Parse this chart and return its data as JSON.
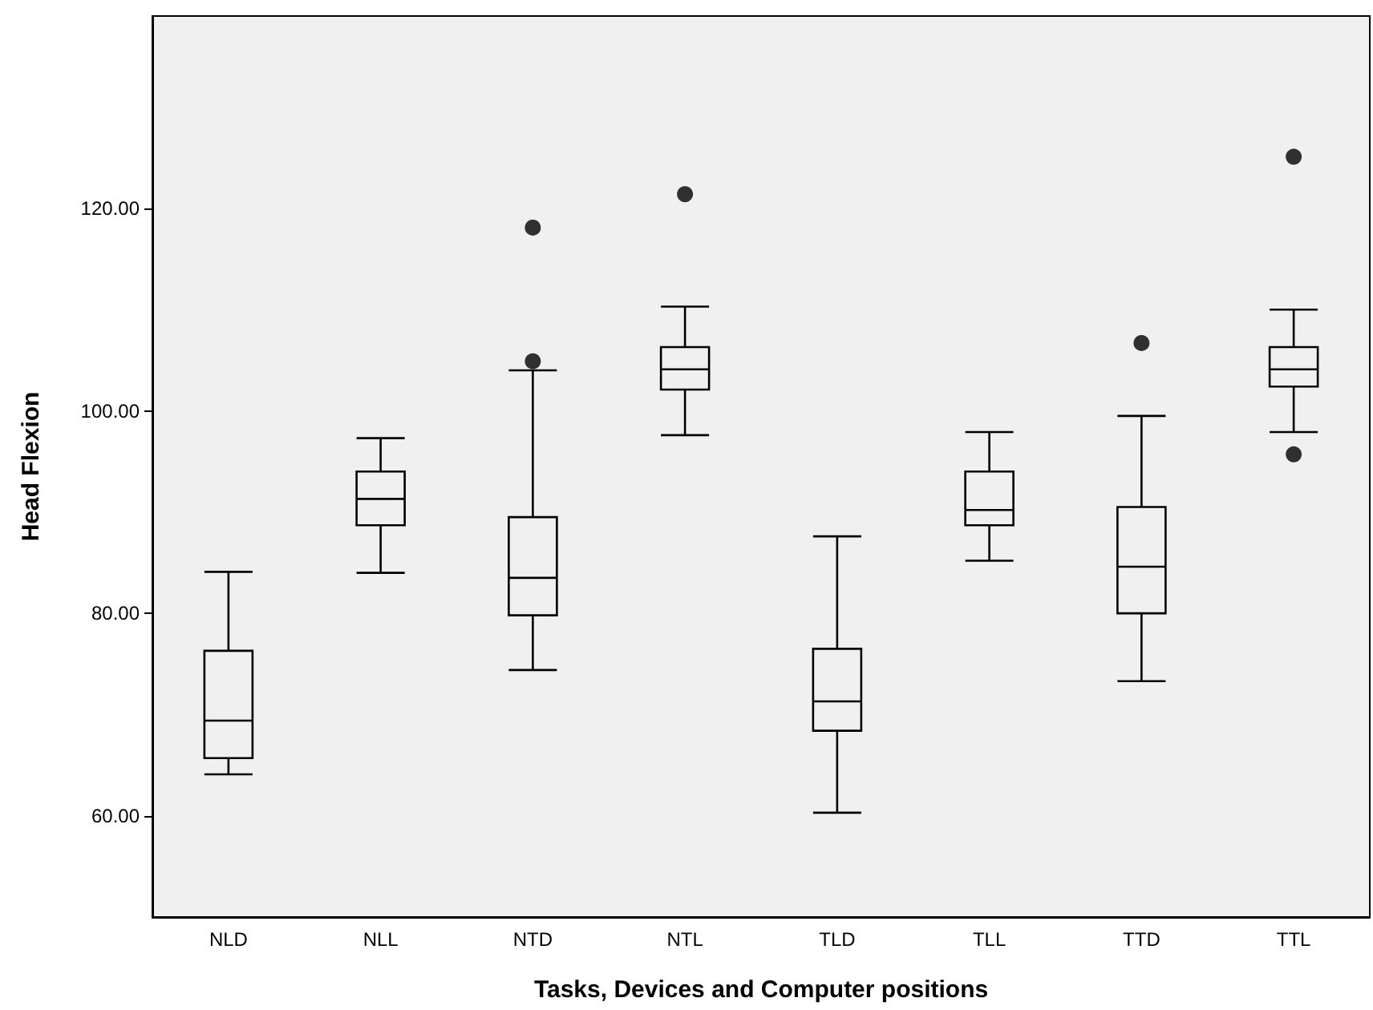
{
  "chart_data": {
    "type": "box",
    "xlabel": "Tasks, Devices and Computer positions",
    "ylabel": "Head Flexion",
    "categories": [
      "NLD",
      "NLL",
      "NTD",
      "NTL",
      "TLD",
      "TLL",
      "TTD",
      "TTL"
    ],
    "color": "#000000",
    "marker": "circle",
    "grid": false,
    "ylim": [
      50,
      139
    ],
    "yticks": [
      {
        "value": 60,
        "label": "60.00"
      },
      {
        "value": 80,
        "label": "80.00"
      },
      {
        "value": 100,
        "label": "100.00"
      },
      {
        "value": 120,
        "label": "120.00"
      }
    ],
    "boxes": [
      {
        "low": 64.1,
        "q1": 65.7,
        "median": 69.4,
        "q3": 76.3,
        "high": 84.1
      },
      {
        "low": 84.0,
        "q1": 88.7,
        "median": 91.3,
        "q3": 94.0,
        "high": 97.3
      },
      {
        "low": 74.4,
        "q1": 79.8,
        "median": 83.5,
        "q3": 89.5,
        "high": 104.0,
        "outliers": [
          118.1,
          104.9
        ]
      },
      {
        "low": 97.6,
        "q1": 102.1,
        "median": 104.1,
        "q3": 106.3,
        "high": 110.3,
        "outliers": [
          121.4
        ]
      },
      {
        "low": 60.3,
        "q1": 68.4,
        "median": 71.3,
        "q3": 76.5,
        "high": 87.6
      },
      {
        "low": 85.2,
        "q1": 88.7,
        "median": 90.2,
        "q3": 94.0,
        "high": 97.9
      },
      {
        "low": 73.3,
        "q1": 80.0,
        "median": 84.6,
        "q3": 90.5,
        "high": 99.5,
        "outliers": [
          106.7
        ]
      },
      {
        "low": 97.9,
        "q1": 102.4,
        "median": 104.1,
        "q3": 106.3,
        "high": 110.0,
        "outliers": [
          125.1,
          95.7
        ]
      }
    ]
  }
}
